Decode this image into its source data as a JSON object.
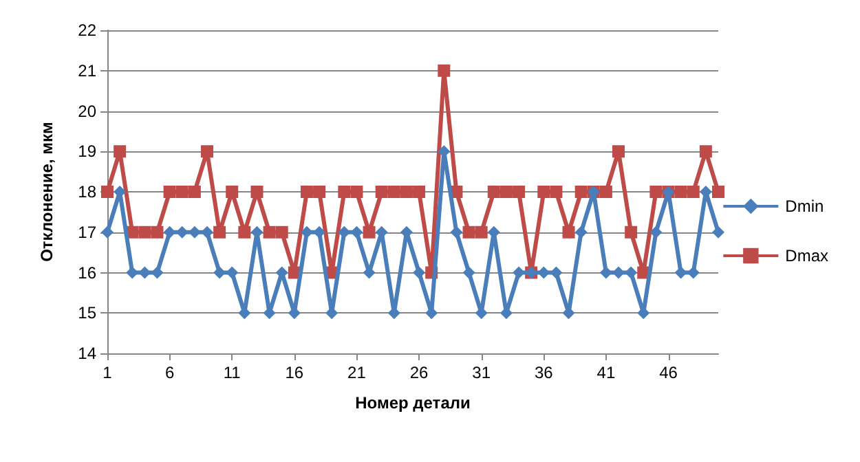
{
  "chart_data": {
    "type": "line",
    "xlabel": "Номер детали",
    "ylabel": "Отклонение, мкм",
    "categories": [
      "1",
      null,
      null,
      null,
      null,
      "6",
      null,
      null,
      null,
      null,
      "11",
      null,
      null,
      null,
      null,
      "16",
      null,
      null,
      null,
      null,
      "21",
      null,
      null,
      null,
      null,
      "26",
      null,
      null,
      null,
      null,
      "31",
      null,
      null,
      null,
      null,
      "36",
      null,
      null,
      null,
      null,
      "41",
      null,
      null,
      null,
      null,
      "46",
      null,
      null,
      null,
      null
    ],
    "series": [
      {
        "name": "Dmin",
        "color": "#4a7ebb",
        "marker": "diamond",
        "values": [
          17,
          18,
          16,
          16,
          16,
          17,
          17,
          17,
          17,
          16,
          16,
          15,
          17,
          15,
          16,
          15,
          17,
          17,
          15,
          17,
          17,
          16,
          17,
          15,
          17,
          16,
          15,
          19,
          17,
          16,
          15,
          17,
          15,
          16,
          16,
          16,
          16,
          15,
          17,
          18,
          16,
          16,
          16,
          15,
          17,
          18,
          16,
          16,
          18,
          17
        ]
      },
      {
        "name": "Dmax",
        "color": "#be4b48",
        "marker": "square",
        "values": [
          18,
          19,
          17,
          17,
          17,
          18,
          18,
          18,
          19,
          17,
          18,
          17,
          18,
          17,
          17,
          16,
          18,
          18,
          16,
          18,
          18,
          17,
          18,
          18,
          18,
          18,
          16,
          21,
          18,
          17,
          17,
          18,
          18,
          18,
          16,
          18,
          18,
          17,
          18,
          18,
          18,
          19,
          17,
          16,
          18,
          18,
          18,
          18,
          19,
          18
        ]
      }
    ],
    "ylim": [
      14,
      22
    ],
    "yticks": [
      14,
      15,
      16,
      17,
      18,
      19,
      20,
      21,
      22
    ],
    "grid": "y",
    "legend": "right",
    "line_style": "solid"
  }
}
